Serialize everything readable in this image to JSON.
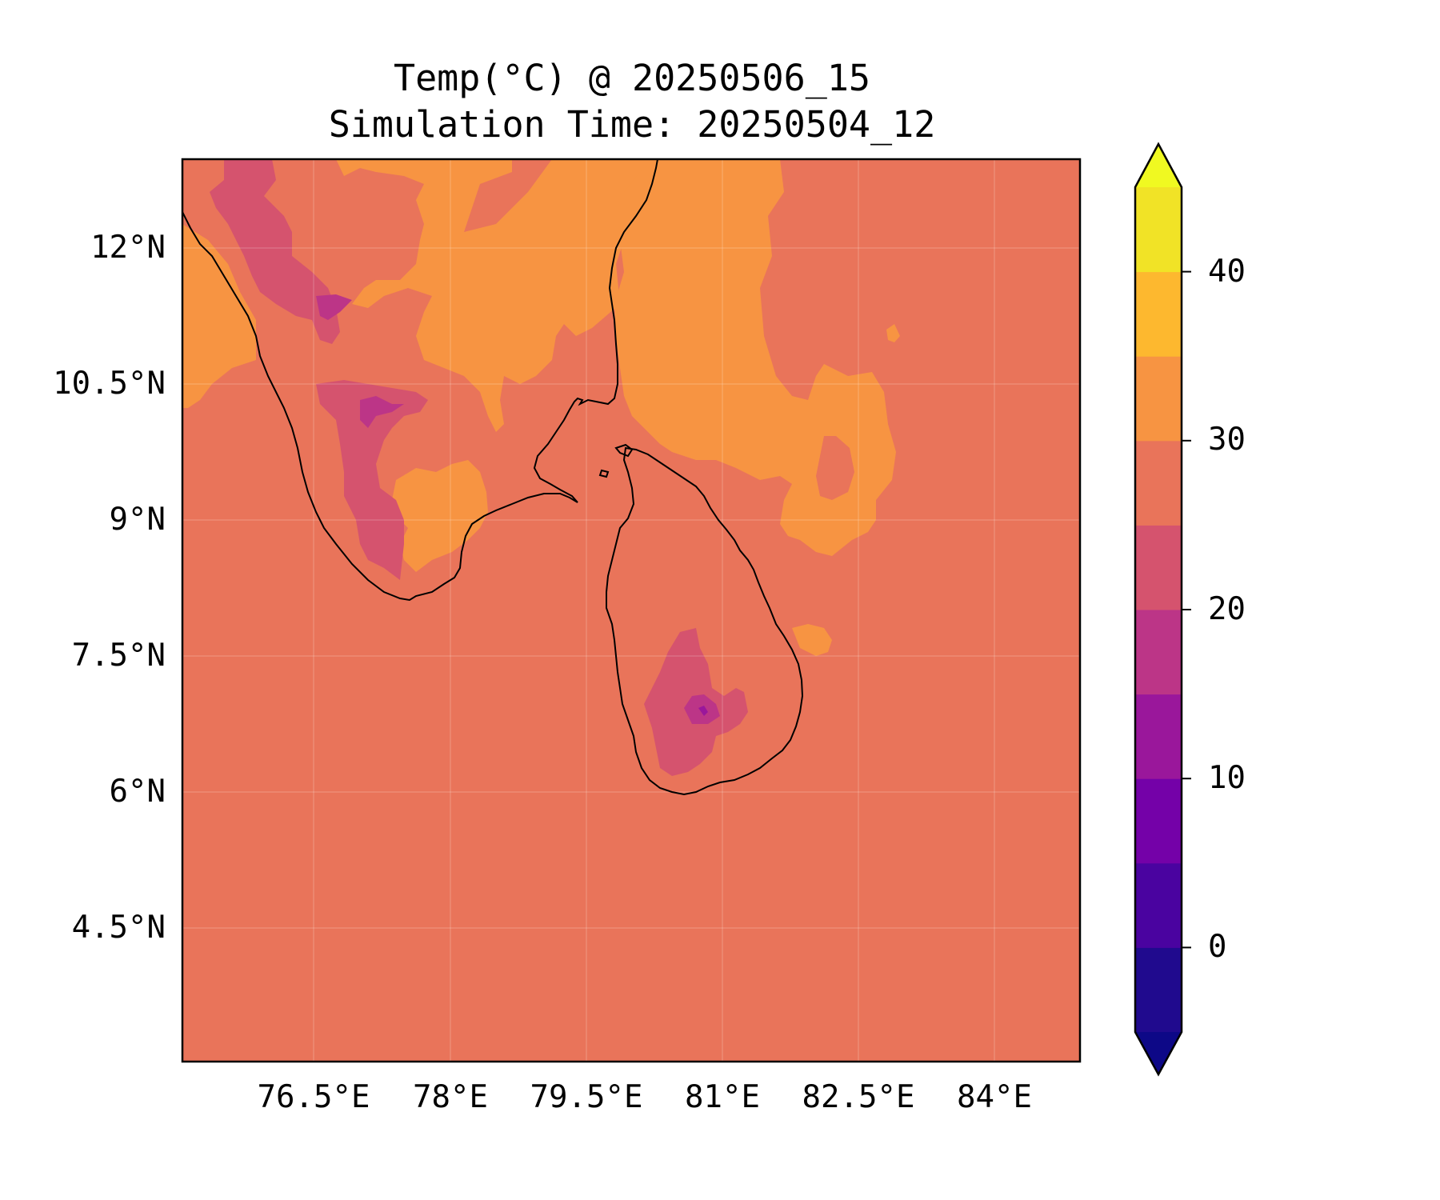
{
  "title": "Temp(°C) @ 20250506_15",
  "subtitle": "Simulation Time: 20250504_12",
  "map": {
    "projection": "PlateCarree",
    "extent": {
      "lon_min": 75.0,
      "lon_max": 84.9,
      "lat_min": 3.0,
      "lat_max": 12.95
    },
    "gridlines": true,
    "coastlines": [
      "India (south)",
      "Sri Lanka"
    ],
    "background_color": "#e9745a"
  },
  "axes": {
    "x_ticks": [
      {
        "value": 76.5,
        "label": "76.5°E"
      },
      {
        "value": 78.0,
        "label": "78°E"
      },
      {
        "value": 79.5,
        "label": "79.5°E"
      },
      {
        "value": 81.0,
        "label": "81°E"
      },
      {
        "value": 82.5,
        "label": "82.5°E"
      },
      {
        "value": 84.0,
        "label": "84°E"
      }
    ],
    "y_ticks": [
      {
        "value": 12.0,
        "label": "12°N"
      },
      {
        "value": 10.5,
        "label": "10.5°N"
      },
      {
        "value": 9.0,
        "label": "9°N"
      },
      {
        "value": 7.5,
        "label": "7.5°N"
      },
      {
        "value": 6.0,
        "label": "6°N"
      },
      {
        "value": 4.5,
        "label": "4.5°N"
      }
    ]
  },
  "colorbar": {
    "levels": [
      -5,
      0,
      5,
      10,
      15,
      20,
      25,
      30,
      35,
      40,
      45
    ],
    "colors": [
      "#200a8e",
      "#4a03a0",
      "#7401a8",
      "#9a179b",
      "#bc3587",
      "#d5536e",
      "#e9745a",
      "#f79442",
      "#fdb82f",
      "#f1e326"
    ],
    "extend_min_color": "#0d0887",
    "extend_max_color": "#f0f921",
    "ticks": [
      {
        "value": 0,
        "label": "0"
      },
      {
        "value": 10,
        "label": "10"
      },
      {
        "value": 20,
        "label": "20"
      },
      {
        "value": 30,
        "label": "30"
      },
      {
        "value": 40,
        "label": "40"
      }
    ]
  },
  "field_regions": [
    {
      "band": "30-35",
      "color": "#f79442",
      "area": "south India interior, north"
    },
    {
      "band": "30-35",
      "color": "#f79442",
      "area": "Bay of Bengal east of Tamil Nadu"
    },
    {
      "band": "30-35",
      "color": "#f79442",
      "area": "Kerala coast, northwest"
    },
    {
      "band": "30-35",
      "color": "#f79442",
      "area": "southern Tamil Nadu plain"
    },
    {
      "band": "20-25",
      "color": "#d5536e",
      "area": "Western Ghats, north"
    },
    {
      "band": "20-25",
      "color": "#d5536e",
      "area": "Western Ghats, south"
    },
    {
      "band": "20-25",
      "color": "#d5536e",
      "area": "Sri Lanka central highlands"
    },
    {
      "band": "15-20",
      "color": "#bc3587",
      "area": "Nilgiri peak"
    },
    {
      "band": "15-20",
      "color": "#bc3587",
      "area": "Anamalai peak"
    },
    {
      "band": "15-20",
      "color": "#bc3587",
      "area": "Sri Lanka peak"
    }
  ]
}
